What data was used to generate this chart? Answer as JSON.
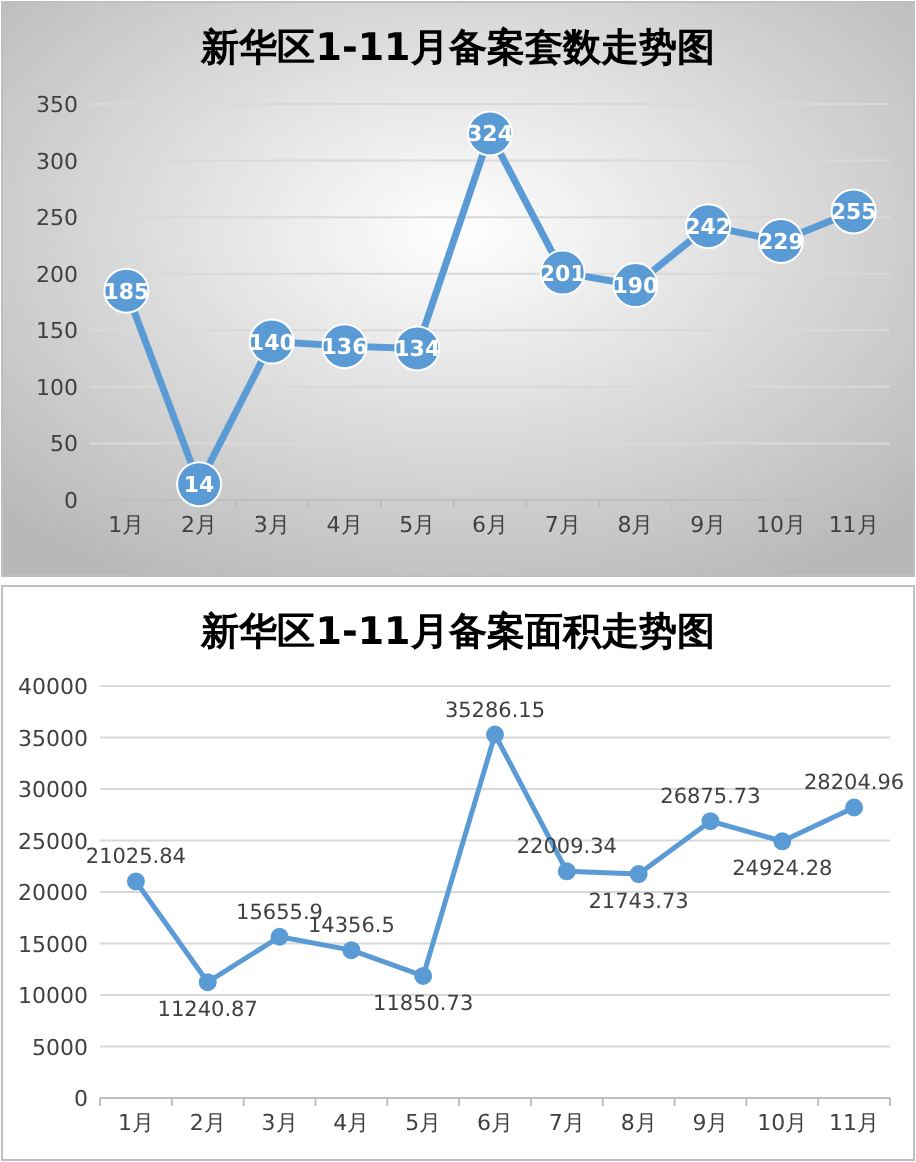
{
  "chart_data": [
    {
      "type": "line",
      "title": "新华区1-11月备案套数走势图",
      "categories": [
        "1月",
        "2月",
        "3月",
        "4月",
        "5月",
        "6月",
        "7月",
        "8月",
        "9月",
        "10月",
        "11月"
      ],
      "series": [
        {
          "color": "#5b9bd5",
          "values": [
            185,
            14,
            140,
            136,
            134,
            324,
            201,
            190,
            242,
            229,
            255
          ]
        }
      ],
      "ylim": [
        0,
        350
      ],
      "yticks": [
        0,
        50,
        100,
        150,
        200,
        250,
        300,
        350
      ],
      "grid": "y",
      "marker": "circle",
      "data_labels": true
    },
    {
      "type": "line",
      "title": "新华区1-11月备案面积走势图",
      "categories": [
        "1月",
        "2月",
        "3月",
        "4月",
        "5月",
        "6月",
        "7月",
        "8月",
        "9月",
        "10月",
        "11月"
      ],
      "series": [
        {
          "color": "#5b9bd5",
          "values": [
            21025.84,
            11240.87,
            15655.9,
            14356.5,
            11850.73,
            35286.15,
            22009.34,
            21743.73,
            26875.73,
            24924.28,
            28204.96
          ]
        }
      ],
      "ylim": [
        0,
        40000
      ],
      "yticks": [
        0,
        5000,
        10000,
        15000,
        20000,
        25000,
        30000,
        35000,
        40000
      ],
      "grid": "y",
      "marker": "circle",
      "data_labels": true
    }
  ]
}
